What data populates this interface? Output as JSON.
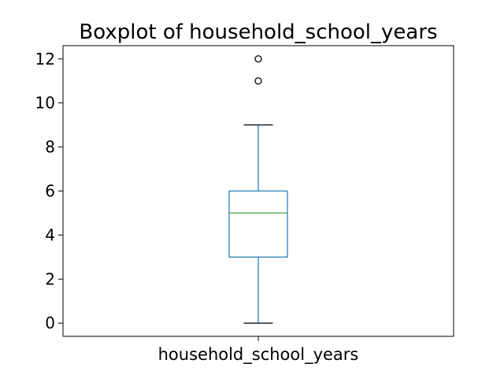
{
  "chart_data": {
    "type": "boxplot",
    "title": "Boxplot of household_school_years",
    "xlabel": "",
    "ylabel": "",
    "categories": [
      "household_school_years"
    ],
    "ylim": [
      -0.6,
      12.6
    ],
    "yticks": [
      0,
      2,
      4,
      6,
      8,
      10,
      12
    ],
    "grid": false,
    "series": [
      {
        "name": "household_school_years",
        "whisker_low": 0,
        "q1": 3,
        "median": 5,
        "q3": 6,
        "whisker_high": 9,
        "outliers": [
          11,
          12
        ]
      }
    ],
    "colors": {
      "box": "#1f77b4",
      "whisker": "#1f77b4",
      "cap": "#000000",
      "median": "#2ca02c",
      "outlier": "#000000",
      "axes": "#000000"
    }
  }
}
